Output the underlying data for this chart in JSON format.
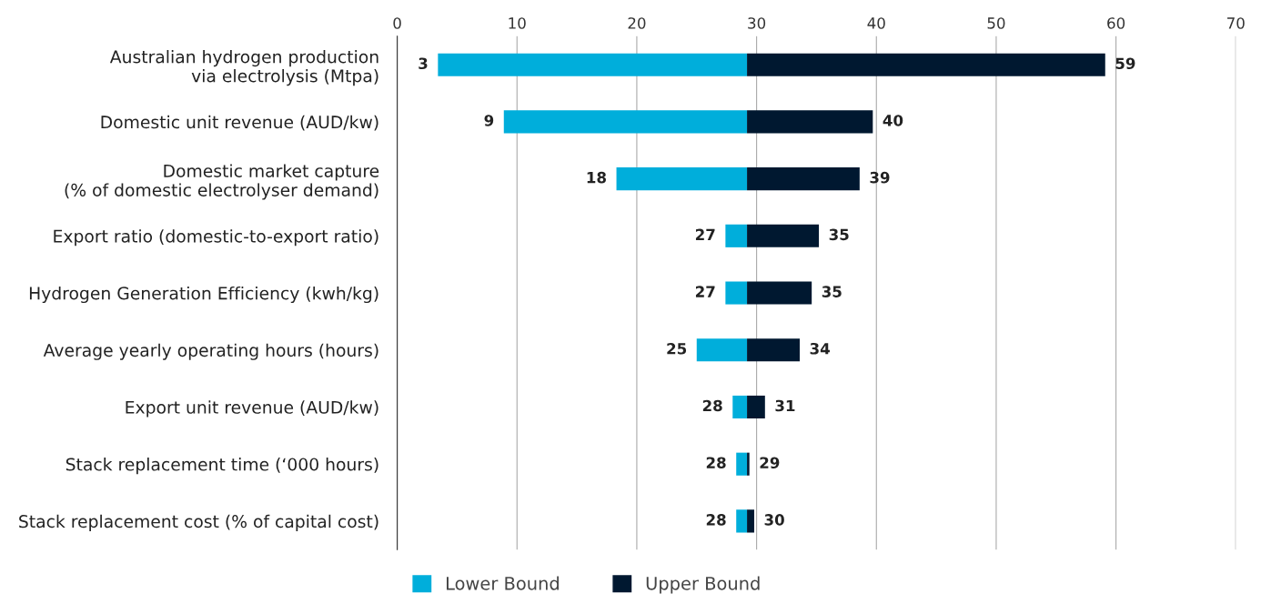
{
  "chart_data": {
    "type": "bar",
    "orientation": "horizontal",
    "categories": [
      "Australian hydrogen production\nvia electrolysis (Mtpa)",
      "Domestic unit revenue (AUD/kw)",
      "Domestic market capture\n(% of domestic electrolyser demand)",
      "Export ratio (domestic-to-export ratio)",
      "Hydrogen Generation Efficiency (kwh/kg)",
      "Average yearly operating hours (hours)",
      "Export unit revenue (AUD/kw)",
      "Stack replacement time (‘000 hours)",
      "Stack replacement cost (% of capital cost)"
    ],
    "series": [
      {
        "name": "Lower Bound",
        "color": "#00aedb",
        "base": [
          29.2,
          29.2,
          29.2,
          29.2,
          29.2,
          29.2,
          29.2,
          29.2,
          29.2
        ],
        "values": [
          -25.8,
          -20.3,
          -10.9,
          -1.8,
          -1.8,
          -4.2,
          -1.2,
          -0.9,
          -0.9
        ],
        "value_labels": [
          "3",
          "9",
          "18",
          "27",
          "27",
          "25",
          "28",
          "28",
          "28"
        ]
      },
      {
        "name": "Upper Bound",
        "color": "#001830",
        "base": [
          29.2,
          29.2,
          29.2,
          29.2,
          29.2,
          29.2,
          29.2,
          29.2,
          29.2
        ],
        "values": [
          29.9,
          10.5,
          9.4,
          6.0,
          5.4,
          4.4,
          1.5,
          0.2,
          0.6
        ],
        "value_labels": [
          "59",
          "40",
          "39",
          "35",
          "35",
          "34",
          "31",
          "29",
          "30"
        ]
      }
    ],
    "xlim": [
      0,
      70
    ],
    "xticks": [
      0,
      10,
      20,
      30,
      40,
      50,
      60,
      70
    ],
    "grid": "x",
    "legend": "bottom"
  }
}
